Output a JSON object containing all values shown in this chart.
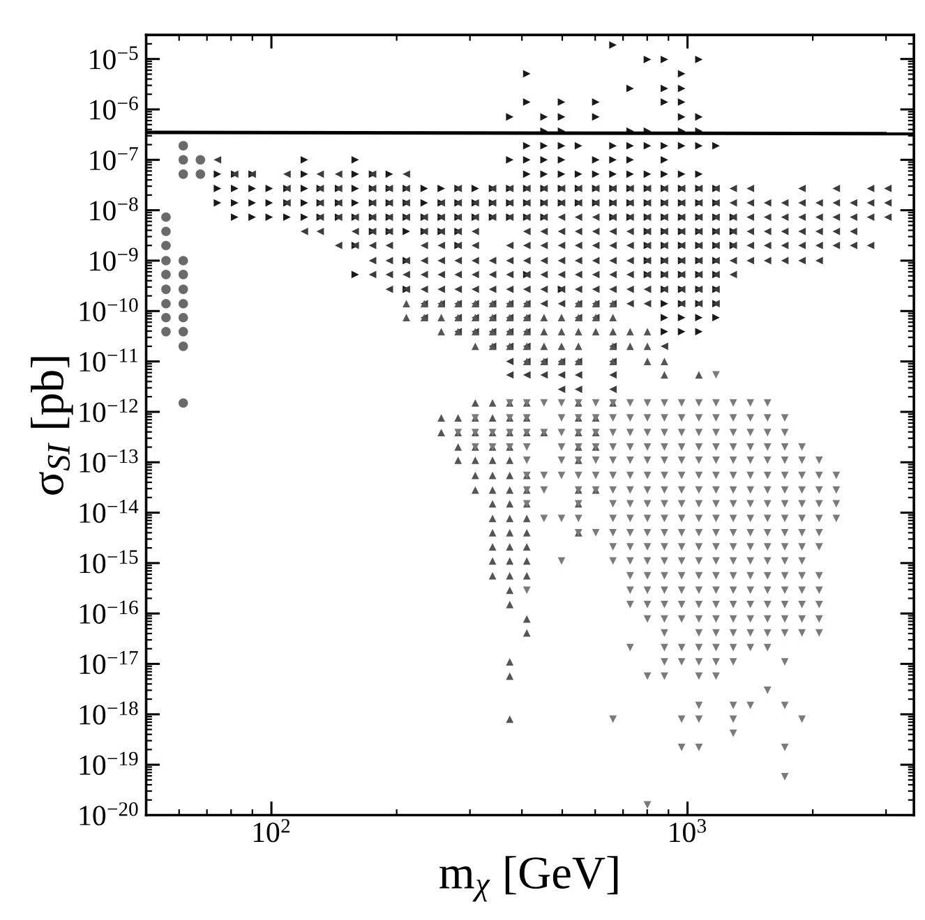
{
  "chart_data": {
    "type": "scatter",
    "xlabel": "m$_{χ}$ [GeV]",
    "ylabel": "σ$_{SI}$ [pb]",
    "log": "xy",
    "grid": false,
    "xlim": [
      50,
      3500
    ],
    "ylim": [
      1e-20,
      3e-05
    ],
    "xticks": [
      {
        "value": 100,
        "label": "10$^{2}$"
      },
      {
        "value": 1000,
        "label": "10$^{3}$"
      }
    ],
    "yticks": [
      {
        "value": 1e-20,
        "label": "10$^{−20}$"
      },
      {
        "value": 1e-19,
        "label": "10$^{−19}$"
      },
      {
        "value": 1e-18,
        "label": "10$^{−18}$"
      },
      {
        "value": 1e-17,
        "label": "10$^{−17}$"
      },
      {
        "value": 1e-16,
        "label": "10$^{−16}$"
      },
      {
        "value": 1e-15,
        "label": "10$^{−15}$"
      },
      {
        "value": 1e-14,
        "label": "10$^{−14}$"
      },
      {
        "value": 1e-13,
        "label": "10$^{−13}$"
      },
      {
        "value": 1e-12,
        "label": "10$^{−12}$"
      },
      {
        "value": 1e-11,
        "label": "10$^{−11}$"
      },
      {
        "value": 1e-10,
        "label": "10$^{−10}$"
      },
      {
        "value": 1e-09,
        "label": "10$^{−9}$"
      },
      {
        "value": 1e-08,
        "label": "10$^{−8}$"
      },
      {
        "value": 1e-07,
        "label": "10$^{−7}$"
      },
      {
        "value": 1e-06,
        "label": "10$^{−6}$"
      },
      {
        "value": 1e-05,
        "label": "10$^{−5}$"
      }
    ],
    "series": [
      {
        "type": "line",
        "color": "#000000",
        "line_style": "solid",
        "marker": "none",
        "x": [
          50,
          3500
        ],
        "values": [
          3.5e-07,
          3.3e-07
        ]
      },
      {
        "color": "#6a6a6a",
        "marker": "circle",
        "x": [
          55.8,
          55.8,
          55.8,
          55.8,
          55.8,
          55.8,
          55.8,
          55.8,
          55.8,
          61.4,
          61.4,
          61.4,
          61.4,
          61.4,
          61.4,
          61.4,
          61.4,
          61.4,
          61.4,
          61.4,
          67.5,
          67.5
        ],
        "values": [
          7.3e-09,
          3.8e-09,
          2e-09,
          1e-09,
          5.3e-10,
          2.7e-10,
          1.4e-10,
          7.4e-11,
          3.9e-11,
          1.9e-07,
          1e-07,
          5.2e-08,
          1e-09,
          5.3e-10,
          2.7e-10,
          1.4e-10,
          7.4e-11,
          3.9e-11,
          2e-11,
          1.5e-12,
          1e-07,
          5.2e-08
        ]
      },
      {
        "color": "#1a1a1a",
        "marker": "triangle_right",
        "x": [
          662,
          801,
          880,
          1065,
          411,
          968,
          728,
          880,
          968,
          411,
          498,
          602,
          880,
          968,
          374,
          452,
          498,
          602,
          968,
          1065,
          452,
          498,
          728,
          801,
          968,
          1065,
          411,
          452,
          498,
          547,
          662,
          728,
          801,
          880,
          968,
          1065,
          1171,
          120,
          159,
          374,
          411,
          452,
          498,
          602,
          662,
          728,
          880,
          74.2,
          81.6,
          89.9,
          120,
          159,
          175,
          192,
          411,
          452,
          498,
          547,
          602,
          662,
          728,
          801,
          880,
          968,
          1065,
          74.2,
          81.6,
          89.9,
          98.8,
          109,
          120,
          131,
          145,
          159,
          175,
          192,
          211,
          233,
          256,
          281,
          309,
          340,
          374,
          411,
          452,
          498,
          547,
          602,
          662,
          728,
          801,
          880,
          968,
          1065,
          1171,
          74.2,
          81.6,
          89.9,
          98.8,
          109,
          120,
          131,
          145,
          159,
          175,
          192,
          211,
          233,
          256,
          281,
          309,
          340,
          374,
          411,
          452,
          498,
          547,
          602,
          662,
          728,
          801,
          880,
          968,
          1065,
          1171,
          81.6,
          89.9,
          98.8,
          109,
          120,
          131,
          145,
          159,
          175,
          192,
          211,
          233,
          256,
          281,
          309,
          340,
          374,
          411,
          452,
          662,
          728,
          801,
          880,
          968,
          1065,
          1171,
          1288,
          175,
          192,
          211,
          233,
          256,
          281,
          801,
          880,
          968,
          1065,
          1171,
          1288,
          159,
          281,
          801,
          880,
          968,
          1065,
          1171,
          1288,
          211,
          801,
          880,
          968,
          1065,
          1171,
          159,
          411,
          801,
          880,
          968,
          1065,
          1171,
          211,
          498,
          880,
          968,
          1065,
          1171,
          880,
          968,
          1065,
          1171,
          880,
          968,
          1065,
          1171,
          880,
          968,
          1065
        ],
        "values": [
          1.9e-05,
          9.8e-06,
          9.8e-06,
          9.8e-06,
          5.1e-06,
          5.1e-06,
          2.6e-06,
          2.6e-06,
          2.6e-06,
          1.4e-06,
          1.4e-06,
          1.4e-06,
          1.4e-06,
          1.4e-06,
          7.1e-07,
          7.1e-07,
          7.1e-07,
          7.1e-07,
          7.1e-07,
          7.1e-07,
          3.7e-07,
          3.7e-07,
          3.7e-07,
          3.7e-07,
          3.7e-07,
          3.7e-07,
          1.9e-07,
          1.9e-07,
          1.9e-07,
          1.9e-07,
          1.9e-07,
          1.9e-07,
          1.9e-07,
          1.9e-07,
          1.9e-07,
          1.9e-07,
          1.9e-07,
          1e-07,
          1e-07,
          1e-07,
          1e-07,
          1e-07,
          1e-07,
          1e-07,
          1e-07,
          1e-07,
          1e-07,
          5.2e-08,
          5.2e-08,
          5.2e-08,
          5.2e-08,
          5.2e-08,
          5.2e-08,
          5.2e-08,
          5.2e-08,
          5.2e-08,
          5.2e-08,
          5.2e-08,
          5.2e-08,
          5.2e-08,
          5.2e-08,
          5.2e-08,
          5.2e-08,
          5.2e-08,
          5.2e-08,
          2.7e-08,
          2.7e-08,
          2.7e-08,
          2.7e-08,
          2.7e-08,
          2.7e-08,
          2.7e-08,
          2.7e-08,
          2.7e-08,
          2.7e-08,
          2.7e-08,
          2.7e-08,
          2.7e-08,
          2.7e-08,
          2.7e-08,
          2.7e-08,
          2.7e-08,
          2.7e-08,
          2.7e-08,
          2.7e-08,
          2.7e-08,
          2.7e-08,
          2.7e-08,
          2.7e-08,
          2.7e-08,
          2.7e-08,
          2.7e-08,
          2.7e-08,
          2.7e-08,
          2.7e-08,
          1.4e-08,
          1.4e-08,
          1.4e-08,
          1.4e-08,
          1.4e-08,
          1.4e-08,
          1.4e-08,
          1.4e-08,
          1.4e-08,
          1.4e-08,
          1.4e-08,
          1.4e-08,
          1.4e-08,
          1.4e-08,
          1.4e-08,
          1.4e-08,
          1.4e-08,
          1.4e-08,
          1.4e-08,
          1.4e-08,
          1.4e-08,
          1.4e-08,
          1.4e-08,
          1.4e-08,
          1.4e-08,
          1.4e-08,
          1.4e-08,
          1.4e-08,
          1.4e-08,
          1.4e-08,
          7.3e-09,
          7.3e-09,
          7.3e-09,
          7.3e-09,
          7.3e-09,
          7.3e-09,
          7.3e-09,
          7.3e-09,
          7.3e-09,
          7.3e-09,
          7.3e-09,
          7.3e-09,
          7.3e-09,
          7.3e-09,
          7.3e-09,
          7.3e-09,
          7.3e-09,
          7.3e-09,
          7.3e-09,
          7.3e-09,
          7.3e-09,
          7.3e-09,
          7.3e-09,
          7.3e-09,
          7.3e-09,
          7.3e-09,
          7.3e-09,
          3.8e-09,
          3.8e-09,
          3.8e-09,
          3.8e-09,
          3.8e-09,
          3.8e-09,
          3.8e-09,
          3.8e-09,
          3.8e-09,
          3.8e-09,
          3.8e-09,
          3.8e-09,
          2e-09,
          2e-09,
          2e-09,
          2e-09,
          2e-09,
          2e-09,
          2e-09,
          2e-09,
          1e-09,
          1e-09,
          1e-09,
          1e-09,
          1e-09,
          1e-09,
          5.3e-10,
          5.3e-10,
          5.3e-10,
          5.3e-10,
          5.3e-10,
          5.3e-10,
          5.3e-10,
          2.7e-10,
          2.7e-10,
          2.7e-10,
          2.7e-10,
          2.7e-10,
          2.7e-10,
          1.4e-10,
          1.4e-10,
          1.4e-10,
          1.4e-10,
          7.4e-11,
          7.4e-11,
          7.4e-11,
          7.4e-11,
          3.9e-11,
          3.9e-11,
          3.9e-11
        ]
      },
      {
        "color": "#3c3c3c",
        "marker": "triangle_left",
        "x": [
          74.2,
          81.6,
          89.9,
          109,
          131,
          145,
          175,
          211,
          109,
          131,
          145,
          175,
          192,
          211,
          281,
          340,
          374,
          411,
          452,
          498,
          547,
          602,
          662,
          728,
          801,
          880,
          968,
          1065,
          1171,
          1288,
          1416,
          1884,
          2278,
          2754,
          3030,
          109,
          131,
          145,
          175,
          192,
          211,
          256,
          281,
          309,
          340,
          374,
          411,
          452,
          498,
          547,
          602,
          662,
          728,
          801,
          880,
          968,
          1065,
          1171,
          1288,
          1416,
          1557,
          1713,
          1884,
          2072,
          2278,
          2506,
          2754,
          3030,
          131,
          145,
          159,
          175,
          192,
          211,
          233,
          256,
          281,
          309,
          340,
          374,
          411,
          452,
          498,
          547,
          602,
          662,
          728,
          801,
          880,
          968,
          1065,
          1171,
          1288,
          1416,
          1557,
          1713,
          1884,
          2072,
          2278,
          2506,
          2754,
          3030,
          120,
          131,
          159,
          175,
          192,
          233,
          256,
          281,
          309,
          411,
          452,
          498,
          547,
          602,
          662,
          728,
          801,
          880,
          968,
          1065,
          1171,
          1288,
          1416,
          1557,
          1713,
          1884,
          2072,
          2278,
          2506,
          145,
          159,
          175,
          192,
          233,
          256,
          281,
          309,
          374,
          411,
          452,
          498,
          547,
          602,
          662,
          728,
          801,
          880,
          968,
          1065,
          1171,
          1288,
          1416,
          1557,
          1713,
          1884,
          2072,
          2278,
          2506,
          2754,
          175,
          192,
          211,
          233,
          256,
          281,
          309,
          340,
          374,
          411,
          452,
          498,
          547,
          602,
          662,
          728,
          801,
          880,
          968,
          1065,
          1171,
          1288,
          1416,
          1557,
          1713,
          1884,
          2072,
          175,
          192,
          211,
          233,
          256,
          281,
          309,
          340,
          374,
          411,
          452,
          498,
          547,
          602,
          662,
          728,
          801,
          880,
          968,
          1065,
          1171,
          1288,
          192,
          211,
          233,
          256,
          281,
          309,
          340,
          374,
          411,
          452,
          498,
          547,
          602,
          662,
          728,
          801,
          880,
          968,
          1065,
          1171,
          233,
          256,
          281,
          309,
          340,
          374,
          411,
          452,
          498,
          547,
          602,
          662,
          728,
          801,
          968,
          1065,
          1171,
          233,
          281,
          309,
          340,
          374,
          411,
          547,
          602,
          281,
          309,
          340,
          374,
          411,
          340,
          374,
          411,
          662,
          880,
          374,
          411,
          452,
          498,
          547,
          662,
          374,
          411,
          452,
          498,
          547,
          662,
          498,
          547,
          662
        ],
        "values": [
          1e-07,
          5.2e-08,
          5.2e-08,
          5.2e-08,
          5.2e-08,
          5.2e-08,
          5.2e-08,
          5.2e-08,
          2.7e-08,
          2.7e-08,
          2.7e-08,
          2.7e-08,
          2.7e-08,
          2.7e-08,
          2.7e-08,
          2.7e-08,
          2.7e-08,
          2.7e-08,
          2.7e-08,
          2.7e-08,
          2.7e-08,
          2.7e-08,
          2.7e-08,
          2.7e-08,
          2.7e-08,
          2.7e-08,
          2.7e-08,
          2.7e-08,
          2.7e-08,
          2.7e-08,
          2.7e-08,
          2.7e-08,
          2.7e-08,
          2.7e-08,
          2.7e-08,
          1.4e-08,
          1.4e-08,
          1.4e-08,
          1.4e-08,
          1.4e-08,
          1.4e-08,
          1.4e-08,
          1.4e-08,
          1.4e-08,
          1.4e-08,
          1.4e-08,
          1.4e-08,
          1.4e-08,
          1.4e-08,
          1.4e-08,
          1.4e-08,
          1.4e-08,
          1.4e-08,
          1.4e-08,
          1.4e-08,
          1.4e-08,
          1.4e-08,
          1.4e-08,
          1.4e-08,
          1.4e-08,
          1.4e-08,
          1.4e-08,
          1.4e-08,
          1.4e-08,
          1.4e-08,
          1.4e-08,
          1.4e-08,
          1.4e-08,
          7.3e-09,
          7.3e-09,
          7.3e-09,
          7.3e-09,
          7.3e-09,
          7.3e-09,
          7.3e-09,
          7.3e-09,
          7.3e-09,
          7.3e-09,
          7.3e-09,
          7.3e-09,
          7.3e-09,
          7.3e-09,
          7.3e-09,
          7.3e-09,
          7.3e-09,
          7.3e-09,
          7.3e-09,
          7.3e-09,
          7.3e-09,
          7.3e-09,
          7.3e-09,
          7.3e-09,
          7.3e-09,
          7.3e-09,
          7.3e-09,
          7.3e-09,
          7.3e-09,
          7.3e-09,
          7.3e-09,
          7.3e-09,
          7.3e-09,
          7.3e-09,
          3.8e-09,
          3.8e-09,
          3.8e-09,
          3.8e-09,
          3.8e-09,
          3.8e-09,
          3.8e-09,
          3.8e-09,
          3.8e-09,
          3.8e-09,
          3.8e-09,
          3.8e-09,
          3.8e-09,
          3.8e-09,
          3.8e-09,
          3.8e-09,
          3.8e-09,
          3.8e-09,
          3.8e-09,
          3.8e-09,
          3.8e-09,
          3.8e-09,
          3.8e-09,
          3.8e-09,
          3.8e-09,
          3.8e-09,
          3.8e-09,
          3.8e-09,
          3.8e-09,
          2e-09,
          2e-09,
          2e-09,
          2e-09,
          2e-09,
          2e-09,
          2e-09,
          2e-09,
          2e-09,
          2e-09,
          2e-09,
          2e-09,
          2e-09,
          2e-09,
          2e-09,
          2e-09,
          2e-09,
          2e-09,
          2e-09,
          2e-09,
          2e-09,
          2e-09,
          2e-09,
          2e-09,
          2e-09,
          2e-09,
          2e-09,
          2e-09,
          2e-09,
          2e-09,
          1e-09,
          1e-09,
          1e-09,
          1e-09,
          1e-09,
          1e-09,
          1e-09,
          1e-09,
          1e-09,
          1e-09,
          1e-09,
          1e-09,
          1e-09,
          1e-09,
          1e-09,
          1e-09,
          1e-09,
          1e-09,
          1e-09,
          1e-09,
          1e-09,
          1e-09,
          1e-09,
          1e-09,
          1e-09,
          1e-09,
          1e-09,
          5.3e-10,
          5.3e-10,
          5.3e-10,
          5.3e-10,
          5.3e-10,
          5.3e-10,
          5.3e-10,
          5.3e-10,
          5.3e-10,
          5.3e-10,
          5.3e-10,
          5.3e-10,
          5.3e-10,
          5.3e-10,
          5.3e-10,
          5.3e-10,
          5.3e-10,
          5.3e-10,
          5.3e-10,
          5.3e-10,
          5.3e-10,
          5.3e-10,
          2.7e-10,
          2.7e-10,
          2.7e-10,
          2.7e-10,
          2.7e-10,
          2.7e-10,
          2.7e-10,
          2.7e-10,
          2.7e-10,
          2.7e-10,
          2.7e-10,
          2.7e-10,
          2.7e-10,
          2.7e-10,
          2.7e-10,
          2.7e-10,
          2.7e-10,
          2.7e-10,
          2.7e-10,
          2.7e-10,
          1.4e-10,
          1.4e-10,
          1.4e-10,
          1.4e-10,
          1.4e-10,
          1.4e-10,
          1.4e-10,
          1.4e-10,
          1.4e-10,
          1.4e-10,
          1.4e-10,
          1.4e-10,
          1.4e-10,
          1.4e-10,
          1.4e-10,
          1.4e-10,
          1.4e-10,
          7.4e-11,
          7.4e-11,
          7.4e-11,
          7.4e-11,
          7.4e-11,
          7.4e-11,
          7.4e-11,
          7.4e-11,
          3.9e-11,
          3.9e-11,
          3.9e-11,
          3.9e-11,
          3.9e-11,
          2e-11,
          2e-11,
          2e-11,
          2e-11,
          2e-11,
          1e-11,
          1e-11,
          1e-11,
          1e-11,
          1e-11,
          1e-11,
          5.4e-12,
          5.4e-12,
          5.4e-12,
          5.4e-12,
          5.4e-12,
          5.4e-12,
          2.8e-12,
          2.8e-12,
          2.8e-12
        ]
      },
      {
        "color": "#555555",
        "marker": "triangle",
        "x": [
          211,
          233,
          256,
          281,
          309,
          340,
          374,
          411,
          547,
          602,
          662,
          211,
          233,
          256,
          281,
          309,
          340,
          374,
          411,
          452,
          498,
          547,
          602,
          662,
          256,
          281,
          309,
          340,
          374,
          411,
          452,
          498,
          547,
          602,
          662,
          728,
          801,
          309,
          340,
          374,
          411,
          452,
          498,
          547,
          662,
          728,
          801,
          411,
          452,
          498,
          547,
          662,
          801,
          880,
          880,
          1065,
          309,
          340,
          374,
          411,
          547,
          662,
          256,
          281,
          309,
          340,
          374,
          411,
          547,
          602,
          256,
          281,
          309,
          340,
          374,
          411,
          452,
          547,
          602,
          281,
          309,
          340,
          374,
          547,
          602,
          281,
          309,
          340,
          374,
          547,
          309,
          340,
          374,
          411,
          309,
          340,
          374,
          411,
          547,
          602,
          340,
          374,
          411,
          547,
          340,
          374,
          411,
          340,
          374,
          411,
          547,
          340,
          374,
          411,
          340,
          374,
          411,
          340,
          374,
          411,
          374,
          374,
          411,
          411,
          374,
          374,
          374
        ],
        "values": [
          1.4e-10,
          1.4e-10,
          1.4e-10,
          1.4e-10,
          1.4e-10,
          1.4e-10,
          1.4e-10,
          1.4e-10,
          1.4e-10,
          1.4e-10,
          1.4e-10,
          7.4e-11,
          7.4e-11,
          7.4e-11,
          7.4e-11,
          7.4e-11,
          7.4e-11,
          7.4e-11,
          7.4e-11,
          7.4e-11,
          7.4e-11,
          7.4e-11,
          7.4e-11,
          7.4e-11,
          3.9e-11,
          3.9e-11,
          3.9e-11,
          3.9e-11,
          3.9e-11,
          3.9e-11,
          3.9e-11,
          3.9e-11,
          3.9e-11,
          3.9e-11,
          3.9e-11,
          3.9e-11,
          3.9e-11,
          2e-11,
          2e-11,
          2e-11,
          2e-11,
          2e-11,
          2e-11,
          2e-11,
          2e-11,
          2e-11,
          2e-11,
          1e-11,
          1e-11,
          1e-11,
          1e-11,
          1e-11,
          1e-11,
          1e-11,
          5.4e-12,
          5.4e-12,
          1.5e-12,
          1.5e-12,
          1.5e-12,
          1.5e-12,
          1.5e-12,
          1.5e-12,
          7.6e-13,
          7.6e-13,
          7.6e-13,
          7.6e-13,
          7.6e-13,
          7.6e-13,
          7.6e-13,
          7.6e-13,
          3.9e-13,
          3.9e-13,
          3.9e-13,
          3.9e-13,
          3.9e-13,
          3.9e-13,
          3.9e-13,
          3.9e-13,
          3.9e-13,
          2e-13,
          2e-13,
          2e-13,
          2e-13,
          2e-13,
          2e-13,
          1.1e-13,
          1.1e-13,
          1.1e-13,
          1.1e-13,
          1.1e-13,
          5.5e-14,
          5.5e-14,
          5.5e-14,
          5.5e-14,
          2.8e-14,
          2.8e-14,
          2.8e-14,
          2.8e-14,
          2.8e-14,
          2.8e-14,
          1.5e-14,
          1.5e-14,
          1.5e-14,
          1.5e-14,
          7.7e-15,
          7.7e-15,
          7.7e-15,
          4e-15,
          4e-15,
          4e-15,
          4e-15,
          2.1e-15,
          2.1e-15,
          2.1e-15,
          1.1e-15,
          1.1e-15,
          1.1e-15,
          5.6e-16,
          5.6e-16,
          5.6e-16,
          2.9e-16,
          1.5e-16,
          7.8e-17,
          4.1e-17,
          1.1e-17,
          5.7e-18,
          8e-19
        ]
      },
      {
        "color": "#7a7a7a",
        "marker": "triangle_down",
        "x": [
          1171,
          374,
          411,
          452,
          498,
          547,
          602,
          662,
          728,
          801,
          880,
          968,
          1065,
          1171,
          1288,
          1416,
          1557,
          309,
          374,
          411,
          498,
          547,
          602,
          662,
          728,
          801,
          880,
          968,
          1065,
          1171,
          1288,
          1416,
          1557,
          1713,
          281,
          309,
          340,
          374,
          411,
          452,
          498,
          547,
          602,
          662,
          728,
          801,
          880,
          968,
          1065,
          1171,
          1288,
          1416,
          1557,
          1713,
          309,
          340,
          374,
          411,
          498,
          547,
          602,
          662,
          728,
          801,
          880,
          968,
          1065,
          1171,
          1288,
          1416,
          1557,
          1713,
          1884,
          411,
          498,
          547,
          602,
          662,
          728,
          801,
          880,
          968,
          1065,
          1171,
          1288,
          1416,
          1557,
          1713,
          1884,
          2072,
          411,
          452,
          498,
          547,
          602,
          662,
          728,
          801,
          880,
          968,
          1065,
          1171,
          1288,
          1416,
          1557,
          1713,
          1884,
          2072,
          2278,
          411,
          452,
          547,
          602,
          662,
          728,
          801,
          880,
          968,
          1065,
          1171,
          1288,
          1416,
          1557,
          1713,
          1884,
          2072,
          2278,
          411,
          547,
          662,
          728,
          801,
          880,
          968,
          1065,
          1171,
          1288,
          1416,
          1557,
          1713,
          1884,
          2072,
          2278,
          452,
          498,
          547,
          662,
          728,
          801,
          880,
          968,
          1065,
          1171,
          1288,
          1416,
          1557,
          1713,
          1884,
          2072,
          2278,
          547,
          602,
          662,
          728,
          801,
          880,
          968,
          1065,
          1171,
          1288,
          1416,
          1557,
          1713,
          1884,
          2072,
          662,
          728,
          801,
          880,
          968,
          1065,
          1171,
          1288,
          1416,
          1557,
          1713,
          1884,
          2072,
          498,
          662,
          728,
          801,
          880,
          968,
          1065,
          1171,
          1288,
          1416,
          1557,
          1713,
          1884,
          728,
          801,
          880,
          968,
          1065,
          1171,
          1288,
          1416,
          1557,
          1713,
          1884,
          2072,
          411,
          728,
          801,
          880,
          968,
          1065,
          1171,
          1288,
          1416,
          1557,
          1713,
          1884,
          2072,
          728,
          801,
          880,
          968,
          1065,
          1171,
          1288,
          1416,
          1557,
          1713,
          1884,
          2072,
          801,
          880,
          968,
          1065,
          1171,
          1288,
          1416,
          1557,
          1713,
          1884,
          2072,
          880,
          1065,
          1171,
          1288,
          1416,
          1557,
          1713,
          1884,
          2072,
          728,
          880,
          968,
          1065,
          1171,
          1288,
          1416,
          1557,
          880,
          968,
          1065,
          1171,
          1288,
          1713,
          801,
          880,
          1065,
          1171,
          1557,
          1065,
          1288,
          1416,
          1713,
          662,
          968,
          1065,
          1288,
          1884,
          1288,
          968,
          1065,
          1713,
          1713,
          801
        ],
        "values": [
          5.4e-12,
          1.5e-12,
          1.5e-12,
          1.5e-12,
          1.5e-12,
          1.5e-12,
          1.5e-12,
          1.5e-12,
          1.5e-12,
          1.5e-12,
          1.5e-12,
          1.5e-12,
          1.5e-12,
          1.5e-12,
          1.5e-12,
          1.5e-12,
          1.5e-12,
          7.6e-13,
          7.6e-13,
          7.6e-13,
          7.6e-13,
          7.6e-13,
          7.6e-13,
          7.6e-13,
          7.6e-13,
          7.6e-13,
          7.6e-13,
          7.6e-13,
          7.6e-13,
          7.6e-13,
          7.6e-13,
          7.6e-13,
          7.6e-13,
          7.6e-13,
          3.9e-13,
          3.9e-13,
          3.9e-13,
          3.9e-13,
          3.9e-13,
          3.9e-13,
          3.9e-13,
          3.9e-13,
          3.9e-13,
          3.9e-13,
          3.9e-13,
          3.9e-13,
          3.9e-13,
          3.9e-13,
          3.9e-13,
          3.9e-13,
          3.9e-13,
          3.9e-13,
          3.9e-13,
          3.9e-13,
          2e-13,
          2e-13,
          2e-13,
          2e-13,
          2e-13,
          2e-13,
          2e-13,
          2e-13,
          2e-13,
          2e-13,
          2e-13,
          2e-13,
          2e-13,
          2e-13,
          2e-13,
          2e-13,
          2e-13,
          2e-13,
          2e-13,
          1.1e-13,
          1.1e-13,
          1.1e-13,
          1.1e-13,
          1.1e-13,
          1.1e-13,
          1.1e-13,
          1.1e-13,
          1.1e-13,
          1.1e-13,
          1.1e-13,
          1.1e-13,
          1.1e-13,
          1.1e-13,
          1.1e-13,
          1.1e-13,
          1.1e-13,
          5.5e-14,
          5.5e-14,
          5.5e-14,
          5.5e-14,
          5.5e-14,
          5.5e-14,
          5.5e-14,
          5.5e-14,
          5.5e-14,
          5.5e-14,
          5.5e-14,
          5.5e-14,
          5.5e-14,
          5.5e-14,
          5.5e-14,
          5.5e-14,
          5.5e-14,
          5.5e-14,
          5.5e-14,
          2.8e-14,
          2.8e-14,
          2.8e-14,
          2.8e-14,
          2.8e-14,
          2.8e-14,
          2.8e-14,
          2.8e-14,
          2.8e-14,
          2.8e-14,
          2.8e-14,
          2.8e-14,
          2.8e-14,
          2.8e-14,
          2.8e-14,
          2.8e-14,
          2.8e-14,
          2.8e-14,
          1.5e-14,
          1.5e-14,
          1.5e-14,
          1.5e-14,
          1.5e-14,
          1.5e-14,
          1.5e-14,
          1.5e-14,
          1.5e-14,
          1.5e-14,
          1.5e-14,
          1.5e-14,
          1.5e-14,
          1.5e-14,
          1.5e-14,
          1.5e-14,
          7.7e-15,
          7.7e-15,
          7.7e-15,
          7.7e-15,
          7.7e-15,
          7.7e-15,
          7.7e-15,
          7.7e-15,
          7.7e-15,
          7.7e-15,
          7.7e-15,
          7.7e-15,
          7.7e-15,
          7.7e-15,
          7.7e-15,
          7.7e-15,
          7.7e-15,
          4e-15,
          4e-15,
          4e-15,
          4e-15,
          4e-15,
          4e-15,
          4e-15,
          4e-15,
          4e-15,
          4e-15,
          4e-15,
          4e-15,
          4e-15,
          4e-15,
          4e-15,
          2.1e-15,
          2.1e-15,
          2.1e-15,
          2.1e-15,
          2.1e-15,
          2.1e-15,
          2.1e-15,
          2.1e-15,
          2.1e-15,
          2.1e-15,
          2.1e-15,
          2.1e-15,
          2.1e-15,
          1.1e-15,
          1.1e-15,
          1.1e-15,
          1.1e-15,
          1.1e-15,
          1.1e-15,
          1.1e-15,
          1.1e-15,
          1.1e-15,
          1.1e-15,
          1.1e-15,
          1.1e-15,
          1.1e-15,
          5.6e-16,
          5.6e-16,
          5.6e-16,
          5.6e-16,
          5.6e-16,
          5.6e-16,
          5.6e-16,
          5.6e-16,
          5.6e-16,
          5.6e-16,
          5.6e-16,
          5.6e-16,
          2.9e-16,
          2.9e-16,
          2.9e-16,
          2.9e-16,
          2.9e-16,
          2.9e-16,
          2.9e-16,
          2.9e-16,
          2.9e-16,
          2.9e-16,
          2.9e-16,
          2.9e-16,
          2.9e-16,
          1.5e-16,
          1.5e-16,
          1.5e-16,
          1.5e-16,
          1.5e-16,
          1.5e-16,
          1.5e-16,
          1.5e-16,
          1.5e-16,
          1.5e-16,
          1.5e-16,
          1.5e-16,
          7.8e-17,
          7.8e-17,
          7.8e-17,
          7.8e-17,
          7.8e-17,
          7.8e-17,
          7.8e-17,
          7.8e-17,
          7.8e-17,
          7.8e-17,
          7.8e-17,
          4.1e-17,
          4.1e-17,
          4.1e-17,
          4.1e-17,
          4.1e-17,
          4.1e-17,
          4.1e-17,
          4.1e-17,
          4.1e-17,
          2.1e-17,
          2.1e-17,
          2.1e-17,
          2.1e-17,
          2.1e-17,
          2.1e-17,
          2.1e-17,
          2.1e-17,
          1.1e-17,
          1.1e-17,
          1.1e-17,
          1.1e-17,
          1.1e-17,
          1.1e-17,
          5.7e-18,
          5.7e-18,
          5.7e-18,
          5.7e-18,
          3e-18,
          1.5e-18,
          1.5e-18,
          1.5e-18,
          1.5e-18,
          8e-19,
          8e-19,
          8e-19,
          8e-19,
          8e-19,
          4.2e-19,
          2.2e-19,
          2.2e-19,
          2.2e-19,
          5.8e-20,
          1.6e-20
        ]
      }
    ]
  }
}
